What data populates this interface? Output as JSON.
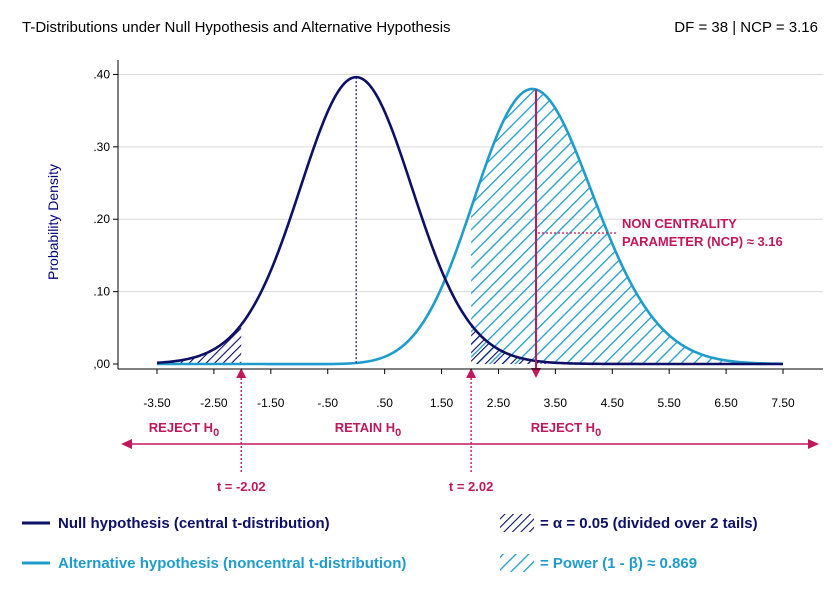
{
  "chart_data": {
    "type": "line",
    "title": "T-Distributions under Null Hypothesis and Alternative Hypothesis",
    "subtitle": "DF = 38 | NCP = 3.16",
    "ylabel": "Probability Density",
    "xlabel": "",
    "xlim": [
      -3.5,
      7.5
    ],
    "ylim": [
      0,
      0.4
    ],
    "grid": true,
    "x_ticks": [
      -3.5,
      -2.5,
      -1.5,
      -0.5,
      0.5,
      1.5,
      2.5,
      3.5,
      4.5,
      5.5,
      6.5,
      7.5
    ],
    "x_tick_labels": [
      "-3.50",
      "-2.50",
      "-1.50",
      "-.50",
      ".50",
      "1.50",
      "2.50",
      "3.50",
      "4.50",
      "5.50",
      "6.50",
      "7.50"
    ],
    "y_ticks": [
      0,
      0.1,
      0.2,
      0.3,
      0.4
    ],
    "y_tick_labels": [
      ",00",
      ".10",
      ".20",
      ".30",
      ".40"
    ],
    "df": 38,
    "ncp": 3.16,
    "critical_values": [
      -2.02,
      2.02
    ],
    "critical_labels": [
      "t = -2.02",
      "t = 2.02"
    ],
    "series": [
      {
        "name": "Null hypothesis (central t-distribution)",
        "peak_x": 0,
        "peak_density": 0.396
      },
      {
        "name": "Alternative hypothesis (noncentral t-distribution)",
        "peak_x": 3.1,
        "peak_density": 0.374
      }
    ],
    "regions": {
      "left_reject_label": "REJECT H",
      "retain_label": "RETAIN H",
      "right_reject_label": "REJECT H",
      "subscript": "0"
    },
    "annotations": {
      "ncp_line1": "NON CENTRALITY",
      "ncp_line2": "PARAMETER (NCP) ≈ 3.16"
    },
    "legend": {
      "alpha_label": "= α = 0.05 (divided over 2 tails)",
      "power_label": "= Power (1 - β) ≈ 0.869"
    },
    "colors": {
      "null": "#0d1066",
      "alternative": "#1e9ccc",
      "accent": "#c2185b",
      "grid": "#d9d9d9"
    }
  }
}
